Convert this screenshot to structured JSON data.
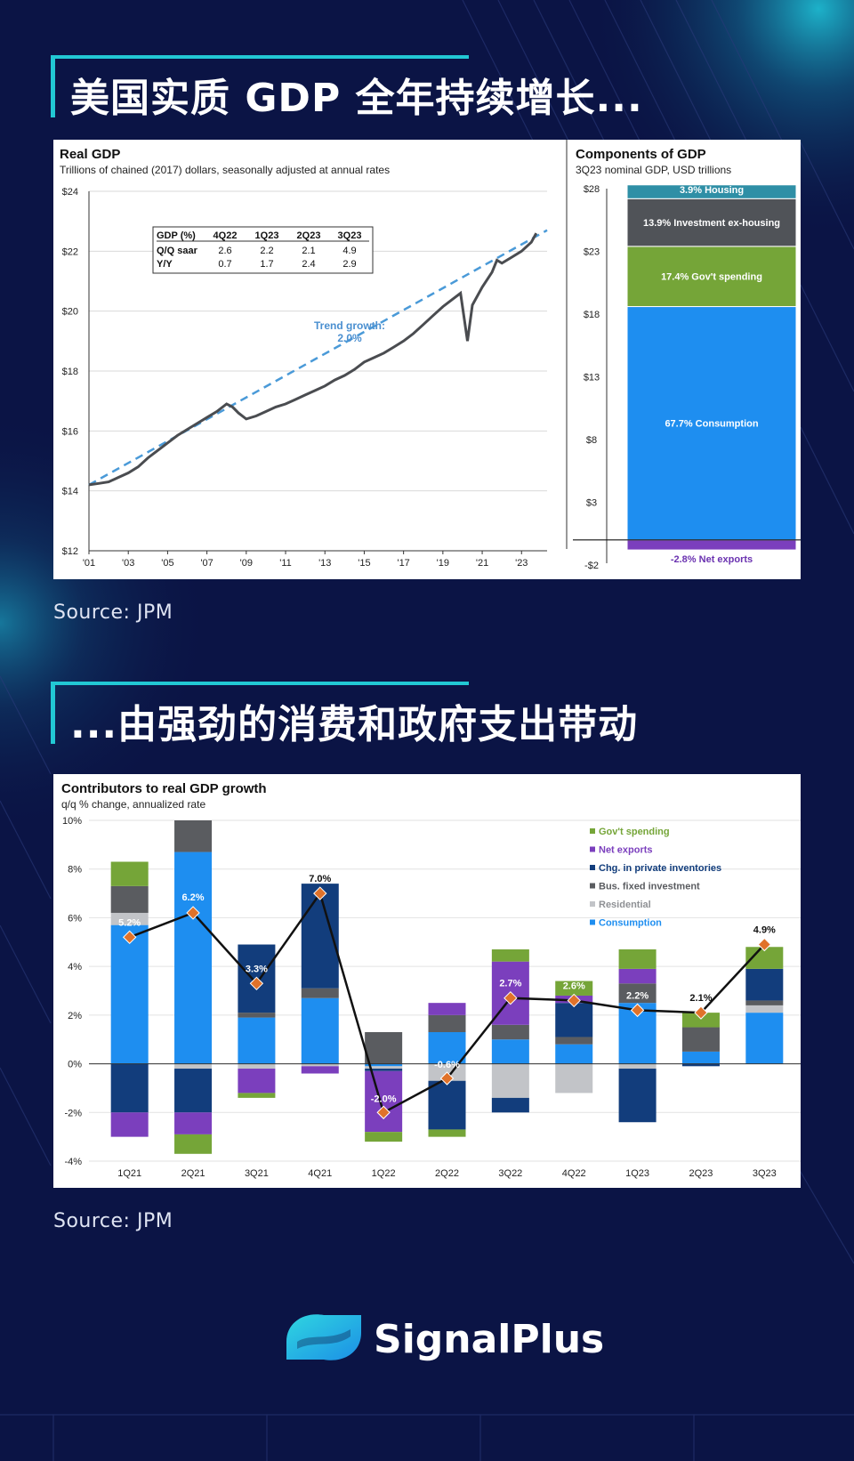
{
  "headings": {
    "top": "美国实质 GDP 全年持续增长...",
    "bottom": "...由强劲的消费和政府支出带动"
  },
  "sources": {
    "top": "Source: JPM",
    "bottom": "Source: JPM"
  },
  "brand": {
    "name": "SignalPlus"
  },
  "colors": {
    "background": "#0b1445",
    "accent": "#22c8d4",
    "consumption": "#1e8ef0",
    "residential": "#c2c4c8",
    "bus_fixed": "#5a5c60",
    "inventories": "#123d7c",
    "net_exports": "#7b3fbd",
    "govt": "#75a538",
    "housing": "#2f8fa6",
    "marker": "#e0722a",
    "trend": "#4a9ad8"
  },
  "chart_data": [
    {
      "type": "line",
      "title": "Real GDP",
      "subtitle": "Trillions of chained (2017) dollars, seasonally adjusted at annual rates",
      "xlim": [
        2001,
        2024.3
      ],
      "ylim": [
        12,
        24
      ],
      "yticks": [
        "$12",
        "$14",
        "$16",
        "$18",
        "$20",
        "$22",
        "$24"
      ],
      "ytick_values": [
        12,
        14,
        16,
        18,
        20,
        22,
        24
      ],
      "xticks": [
        "'01",
        "'03",
        "'05",
        "'07",
        "'09",
        "'11",
        "'13",
        "'15",
        "'17",
        "'19",
        "'21",
        "'23"
      ],
      "xtick_values": [
        2001,
        2003,
        2005,
        2007,
        2009,
        2011,
        2013,
        2015,
        2017,
        2019,
        2021,
        2023
      ],
      "trend_label": [
        "Trend growth:",
        "2.0%"
      ],
      "trend": {
        "x": [
          2001,
          2024.3
        ],
        "y": [
          14.2,
          22.7
        ]
      },
      "series": [
        {
          "x": [
            2001,
            2001.5,
            2002,
            2002.5,
            2003,
            2003.5,
            2004,
            2004.5,
            2005,
            2005.5,
            2006,
            2006.5,
            2007,
            2007.5,
            2008,
            2008.3,
            2008.6,
            2009,
            2009.5,
            2010,
            2010.5,
            2011,
            2011.5,
            2012,
            2012.5,
            2013,
            2013.5,
            2014,
            2014.5,
            2015,
            2015.5,
            2016,
            2016.5,
            2017,
            2017.5,
            2018,
            2018.5,
            2019,
            2019.5,
            2019.9,
            2020.25,
            2020.5,
            2021,
            2021.5,
            2021.75,
            2022,
            2022.5,
            2023,
            2023.5,
            2023.75
          ],
          "y": [
            14.2,
            14.25,
            14.3,
            14.45,
            14.6,
            14.8,
            15.1,
            15.35,
            15.6,
            15.85,
            16.05,
            16.25,
            16.45,
            16.65,
            16.9,
            16.8,
            16.6,
            16.4,
            16.5,
            16.65,
            16.8,
            16.9,
            17.05,
            17.2,
            17.35,
            17.5,
            17.7,
            17.85,
            18.05,
            18.3,
            18.45,
            18.6,
            18.8,
            19.0,
            19.25,
            19.55,
            19.85,
            20.15,
            20.4,
            20.6,
            19.0,
            20.2,
            20.8,
            21.3,
            21.7,
            21.6,
            21.8,
            22.0,
            22.3,
            22.6
          ]
        }
      ],
      "table": {
        "headers": [
          "GDP (%)",
          "4Q22",
          "1Q23",
          "2Q23",
          "3Q23"
        ],
        "rows": [
          [
            "Q/Q saar",
            "2.6",
            "2.2",
            "2.1",
            "4.9"
          ],
          [
            "Y/Y",
            "0.7",
            "1.7",
            "2.4",
            "2.9"
          ]
        ]
      }
    },
    {
      "type": "bar",
      "title": "Components of GDP",
      "subtitle": "3Q23 nominal GDP, USD trillions",
      "ylim": [
        -2,
        28
      ],
      "yticks": [
        "$28",
        "$23",
        "$18",
        "$13",
        "$8",
        "$3",
        "-$2"
      ],
      "ytick_values": [
        28,
        23,
        18,
        13,
        8,
        3,
        -2
      ],
      "segments": [
        {
          "label": "-2.8% Net exports",
          "from": -0.8,
          "to": 0,
          "color": "#7b3fbd"
        },
        {
          "label": "67.7% Consumption",
          "from": 0,
          "to": 18.6,
          "color": "#1e8ef0"
        },
        {
          "label": "17.4% Gov't spending",
          "from": 18.6,
          "to": 23.4,
          "color": "#75a538"
        },
        {
          "label": "13.9% Investment ex-housing",
          "from": 23.4,
          "to": 27.2,
          "color": "#505358"
        },
        {
          "label": "3.9% Housing",
          "from": 27.2,
          "to": 28.3,
          "color": "#2f8fa6"
        }
      ]
    },
    {
      "type": "bar",
      "title": "Contributors to real GDP growth",
      "subtitle": "q/q % change, annualized rate",
      "ylim": [
        -4,
        10
      ],
      "yticks": [
        "10%",
        "8%",
        "6%",
        "4%",
        "2%",
        "0%",
        "-2%",
        "-4%"
      ],
      "ytick_values": [
        10,
        8,
        6,
        4,
        2,
        0,
        -2,
        -4
      ],
      "categories": [
        "1Q21",
        "2Q21",
        "3Q21",
        "4Q21",
        "1Q22",
        "2Q22",
        "3Q22",
        "4Q22",
        "1Q23",
        "2Q23",
        "3Q23"
      ],
      "legend": [
        "Gov't spending",
        "Net exports",
        "Chg. in private inventories",
        "Bus. fixed investment",
        "Residential",
        "Consumption"
      ],
      "series": [
        {
          "name": "Consumption",
          "values": [
            5.7,
            8.7,
            1.9,
            2.7,
            -0.1,
            1.3,
            1.0,
            0.8,
            2.5,
            0.5,
            2.1
          ]
        },
        {
          "name": "Residential",
          "values": [
            0.5,
            -0.2,
            -0.2,
            -0.1,
            -0.1,
            -0.7,
            -1.4,
            -1.2,
            -0.2,
            0.0,
            0.3
          ]
        },
        {
          "name": "Bus. fixed investment",
          "values": [
            1.1,
            1.3,
            0.2,
            0.4,
            1.3,
            0.7,
            0.6,
            0.3,
            0.8,
            1.0,
            0.2
          ]
        },
        {
          "name": "Chg. in private inventories",
          "values": [
            -2.0,
            -1.8,
            2.8,
            4.3,
            -0.1,
            -2.0,
            -0.6,
            1.4,
            -2.2,
            -0.1,
            1.3
          ]
        },
        {
          "name": "Net exports",
          "values": [
            -1.0,
            -0.9,
            -1.0,
            -0.3,
            -2.5,
            0.5,
            2.6,
            0.3,
            0.6,
            0.0,
            0.0
          ]
        },
        {
          "name": "Gov't spending",
          "values": [
            1.0,
            -0.8,
            -0.2,
            0.0,
            -0.4,
            -0.3,
            0.5,
            0.6,
            0.8,
            0.6,
            0.9
          ]
        }
      ],
      "line": {
        "name": "Real GDP growth",
        "values": [
          5.2,
          6.2,
          3.3,
          7.0,
          -2.0,
          -0.6,
          2.7,
          2.6,
          2.2,
          2.1,
          4.9
        ]
      },
      "line_labels": [
        "5.2%",
        "6.2%",
        "3.3%",
        "7.0%",
        "-2.0%",
        "-0.6%",
        "2.7%",
        "2.6%",
        "2.2%",
        "2.1%",
        "4.9%"
      ]
    }
  ]
}
